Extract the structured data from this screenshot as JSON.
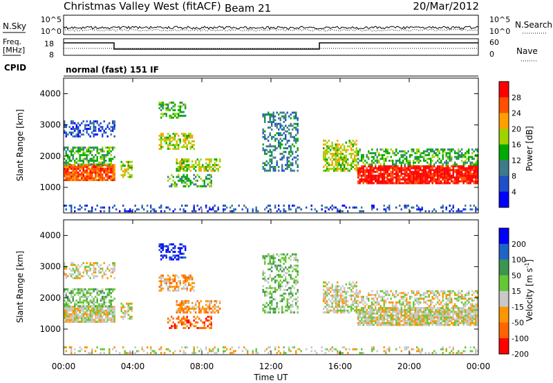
{
  "header": {
    "title": "Christmas Valley West (fitACF)",
    "beam": "Beam 21",
    "date": "20/Mar/2012"
  },
  "colors": {
    "background": "#ffffff",
    "power_scale": [
      "#0000ff",
      "#1e50c8",
      "#3c7a8c",
      "#00aa00",
      "#a0d200",
      "#ffa000",
      "#ff5000",
      "#ff0000"
    ],
    "velocity_scale": [
      "#0000ff",
      "#1e64c8",
      "#3c9650",
      "#64c832",
      "#c8c8c8",
      "#ff9600",
      "#ff6400",
      "#ff0000"
    ]
  },
  "panels": {
    "nsky": {
      "label": "N.Sky",
      "right_label": "N.Search",
      "ticks_left": [
        "10^5",
        "10^0"
      ],
      "ticks_right": [
        "10^5",
        "10^0"
      ]
    },
    "freq": {
      "label_line1": "Freq.",
      "label_line2": "[MHz]",
      "right_label": "Nave",
      "ticks_left": [
        "18",
        "8"
      ],
      "ticks_right": [
        "60",
        "0"
      ]
    },
    "cpid": {
      "label": "CPID",
      "text": "normal (fast) 151 IF"
    }
  },
  "chart_data": [
    {
      "type": "heatmap",
      "name": "power",
      "ylabel": "Slant Range [km]",
      "y_ticks": [
        "1000",
        "2000",
        "3000",
        "4000"
      ],
      "ylim": [
        180,
        4500
      ],
      "xlim": [
        0,
        24
      ],
      "colorbar": {
        "label": "Power [dB]",
        "ticks": [
          "4",
          "8",
          "12",
          "16",
          "20",
          "24",
          "28"
        ],
        "range": [
          0,
          30
        ]
      }
    },
    {
      "type": "heatmap",
      "name": "velocity",
      "ylabel": "Slant Range [km]",
      "y_ticks": [
        "1000",
        "2000",
        "3000",
        "4000"
      ],
      "ylim": [
        180,
        4500
      ],
      "xlim": [
        0,
        24
      ],
      "colorbar": {
        "label": "Velocity [m s",
        "label_sup": "-1",
        "label_end": "]",
        "ticks": [
          "200",
          "100",
          "50",
          "15",
          "-15",
          "-50",
          "-100",
          "-200"
        ],
        "range": [
          -250,
          250
        ]
      },
      "x_ticks": [
        "00:00",
        "04:00",
        "08:00",
        "12:00",
        "16:00",
        "20:00",
        "00:00"
      ],
      "xlabel": "Time UT"
    }
  ]
}
